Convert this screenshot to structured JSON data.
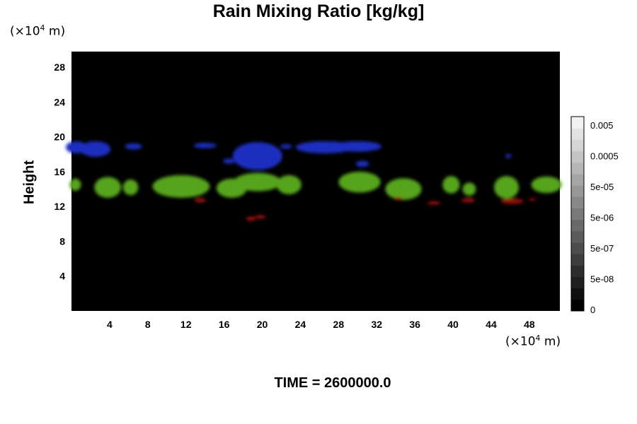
{
  "chart_data": {
    "type": "heatmap",
    "title": "Rain Mixing Ratio [kg/kg]",
    "ylabel": "Height",
    "y_unit": {
      "prefix": "(×10",
      "exp": "4",
      "suffix": " m)"
    },
    "x_unit": {
      "prefix": "(×10",
      "exp": "4",
      "suffix": " m)"
    },
    "xlim": [
      0,
      51.2
    ],
    "ylim": [
      0,
      29.8
    ],
    "x_ticks": [
      4,
      8,
      12,
      16,
      20,
      24,
      28,
      32,
      36,
      40,
      44,
      48
    ],
    "y_ticks": [
      4,
      8,
      12,
      16,
      20,
      24,
      28
    ],
    "colorbar": {
      "labels": [
        "0",
        "5e-08",
        "5e-07",
        "5e-06",
        "5e-05",
        "0.0005",
        "0.005"
      ],
      "levels": 17,
      "colors": {
        "low": "#000000",
        "high": "#f2f2f2"
      }
    },
    "background": "#000000",
    "regions": [
      {
        "color": "#1f2fbf",
        "band": "upper",
        "points": [
          [
            0.5,
            18.8,
            1.1,
            1.4
          ],
          [
            2.5,
            18.6,
            1.6,
            1.8
          ],
          [
            6.5,
            18.9,
            0.9,
            0.7
          ],
          [
            14,
            19,
            1.2,
            0.6
          ],
          [
            16.5,
            17.2,
            0.6,
            0.6
          ],
          [
            19.5,
            17.8,
            2.6,
            3.2
          ],
          [
            22.5,
            18.9,
            0.6,
            0.5
          ],
          [
            26.5,
            18.8,
            3.0,
            1.4
          ],
          [
            30,
            18.9,
            2.5,
            1.2
          ],
          [
            30.5,
            16.9,
            0.7,
            0.7
          ],
          [
            45.8,
            17.8,
            0.3,
            0.5
          ]
        ]
      },
      {
        "color": "#57a41a",
        "band": "middle",
        "points": [
          [
            0.4,
            14.5,
            0.6,
            1.4
          ],
          [
            3.8,
            14.2,
            1.4,
            2.4
          ],
          [
            6.2,
            14.2,
            0.8,
            1.8
          ],
          [
            11.5,
            14.3,
            3.0,
            2.6
          ],
          [
            16.8,
            14.1,
            1.6,
            2.2
          ],
          [
            19.5,
            14.8,
            2.5,
            2.1
          ],
          [
            22.8,
            14.5,
            1.3,
            2.2
          ],
          [
            30.2,
            14.8,
            2.2,
            2.4
          ],
          [
            34.8,
            14.0,
            1.9,
            2.5
          ],
          [
            39.8,
            14.5,
            0.9,
            2.0
          ],
          [
            41.7,
            14.0,
            0.7,
            1.5
          ],
          [
            45.6,
            14.2,
            1.3,
            2.6
          ],
          [
            49.8,
            14.5,
            1.6,
            1.9
          ]
        ]
      },
      {
        "color": "#990f0f",
        "band": "lower",
        "points": [
          [
            13.5,
            12.7,
            0.6,
            0.5
          ],
          [
            18.8,
            10.6,
            0.5,
            0.5
          ],
          [
            19.8,
            10.8,
            0.6,
            0.4
          ],
          [
            34.3,
            12.9,
            0.4,
            0.4
          ],
          [
            38,
            12.4,
            0.7,
            0.4
          ],
          [
            41.6,
            12.7,
            0.7,
            0.5
          ],
          [
            46.2,
            12.6,
            1.2,
            0.6
          ],
          [
            48.3,
            12.8,
            0.4,
            0.3
          ]
        ]
      }
    ]
  },
  "time_label": "TIME = 2600000.0"
}
